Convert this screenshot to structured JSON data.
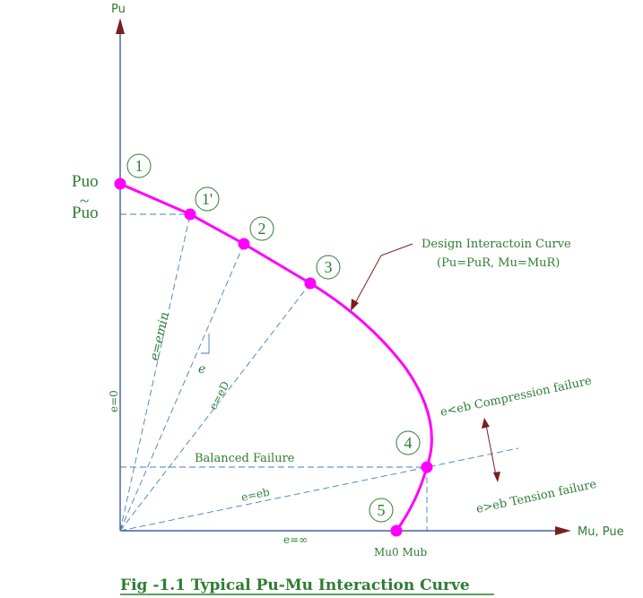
{
  "axes": {
    "y_label": "Pu",
    "x_label": "Mu, Pue"
  },
  "y_labels": {
    "puo": "Puo",
    "puo_tilde": "Puo"
  },
  "points": [
    {
      "num": "1"
    },
    {
      "num": "1'"
    },
    {
      "num": "2"
    },
    {
      "num": "3"
    },
    {
      "num": "4"
    },
    {
      "num": "5"
    }
  ],
  "annotations": {
    "design_curve_line1": "Design Interactoin Curve",
    "design_curve_line2": "(Pu=PuR, Mu=MuR)",
    "compression": "e<eb Compression failure",
    "tension": "e>eb Tension failure",
    "balanced": "Balanced Failure",
    "e_zero": "e=0",
    "e_min": "e=emin",
    "e_small": "e",
    "e_d": "e=eD",
    "e_b": "e=eb",
    "e_inf": "e=∞",
    "mu0_mub": "Mu0 Mub"
  },
  "caption": "Fig -1.1 Typical Pu-Mu Interaction Curve",
  "colors": {
    "curve": "#ff00ff",
    "text": "#2e7d32",
    "axis": "#1f3f8f",
    "dashed": "#3d7fbf",
    "arrow": "#7a1f1f"
  }
}
